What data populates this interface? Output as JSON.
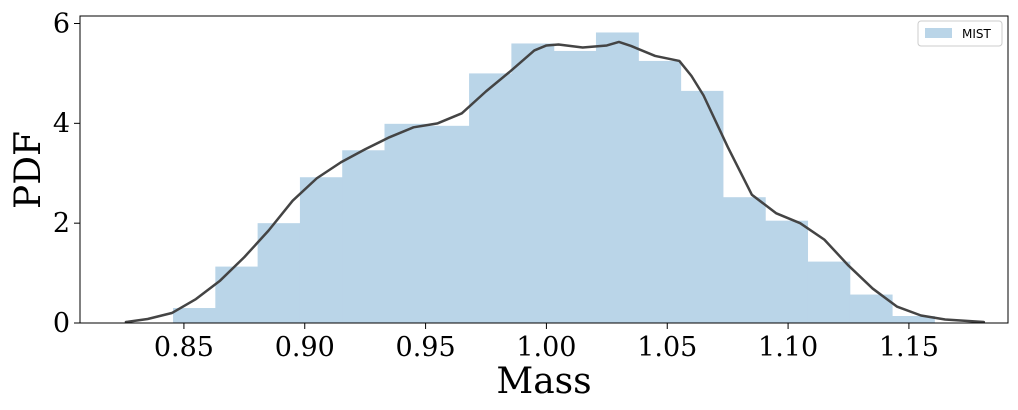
{
  "chart_data": {
    "type": "bar",
    "xlabel": "Mass",
    "ylabel": "PDF",
    "xlim": [
      0.807,
      1.191
    ],
    "ylim": [
      0,
      6.15
    ],
    "xticks": [
      0.85,
      0.9,
      0.95,
      1.0,
      1.05,
      1.1,
      1.15
    ],
    "xtick_labels": [
      "0.85",
      "0.90",
      "0.95",
      "1.00",
      "1.05",
      "1.10",
      "1.15"
    ],
    "yticks": [
      0,
      2,
      4,
      6
    ],
    "ytick_labels": [
      "0",
      "2",
      "4",
      "6"
    ],
    "grid": false,
    "legend": {
      "position": "top-right",
      "entries": [
        "MIST"
      ]
    },
    "series": [
      {
        "name": "MIST",
        "kind": "histogram",
        "color": "#bad5e8",
        "bin_edges": [
          0.8455,
          0.863,
          0.8805,
          0.898,
          0.9155,
          0.933,
          0.9505,
          0.968,
          0.9855,
          1.003,
          1.0205,
          1.038,
          1.0555,
          1.073,
          1.0905,
          1.108,
          1.1255,
          1.143,
          1.1605
        ],
        "values": [
          0.3,
          1.13,
          2.0,
          2.92,
          3.46,
          3.99,
          3.95,
          5.0,
          5.6,
          5.45,
          5.82,
          5.25,
          4.65,
          2.52,
          2.05,
          1.23,
          0.57,
          0.14
        ]
      },
      {
        "name": "",
        "kind": "kde",
        "color": "#444444",
        "x": [
          0.826,
          0.835,
          0.845,
          0.855,
          0.865,
          0.875,
          0.885,
          0.895,
          0.905,
          0.915,
          0.925,
          0.935,
          0.945,
          0.955,
          0.965,
          0.975,
          0.985,
          0.995,
          1.0,
          1.005,
          1.015,
          1.025,
          1.03,
          1.035,
          1.045,
          1.055,
          1.06,
          1.065,
          1.075,
          1.085,
          1.095,
          1.105,
          1.115,
          1.125,
          1.135,
          1.145,
          1.155,
          1.165,
          1.181
        ],
        "y": [
          0.02,
          0.08,
          0.2,
          0.48,
          0.85,
          1.32,
          1.85,
          2.45,
          2.9,
          3.22,
          3.48,
          3.72,
          3.92,
          4.0,
          4.2,
          4.64,
          5.04,
          5.46,
          5.56,
          5.58,
          5.52,
          5.56,
          5.63,
          5.55,
          5.35,
          5.25,
          4.95,
          4.56,
          3.53,
          2.57,
          2.2,
          2.0,
          1.67,
          1.15,
          0.69,
          0.33,
          0.15,
          0.07,
          0.02
        ]
      }
    ]
  }
}
